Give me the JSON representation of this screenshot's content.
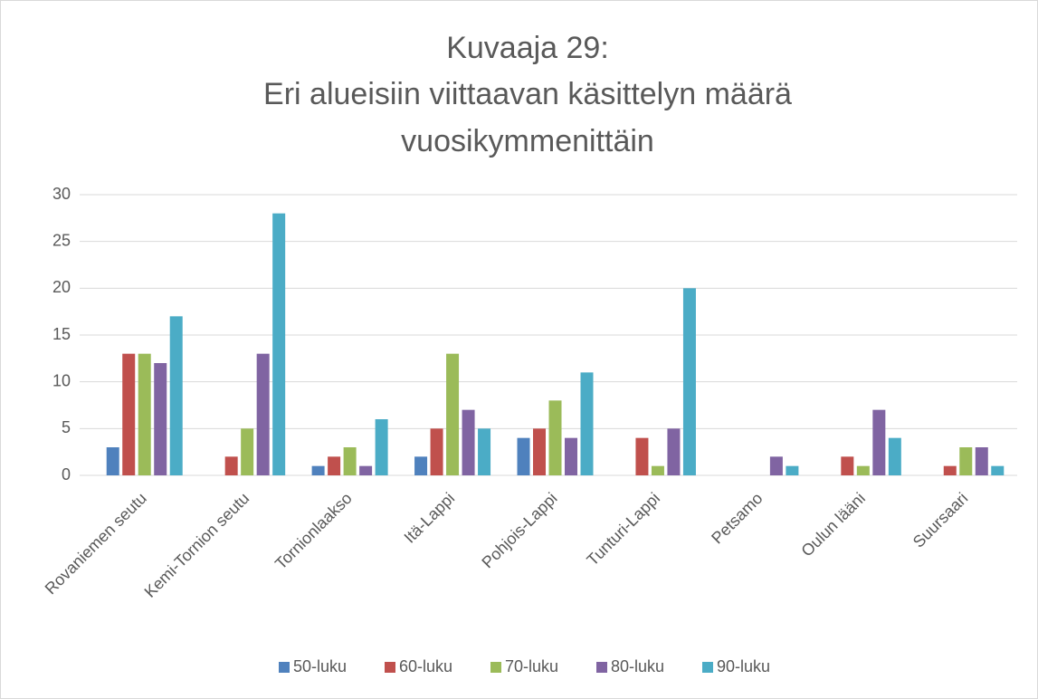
{
  "chart_data": {
    "type": "bar",
    "title": [
      "Kuvaaja 29:",
      "Eri alueisiin viittaavan käsittelyn määrä",
      "vuosikymmenittäin"
    ],
    "categories": [
      "Rovaniemen seutu",
      "Kemi-Tornion seutu",
      "Tornionlaakso",
      "Itä-Lappi",
      "Pohjois-Lappi",
      "Tunturi-Lappi",
      "Petsamo",
      "Oulun lääni",
      "Suursaari"
    ],
    "series": [
      {
        "name": "50-luku",
        "color": "#4f81bd",
        "values": [
          3,
          0,
          1,
          2,
          4,
          0,
          0,
          0,
          0
        ]
      },
      {
        "name": "60-luku",
        "color": "#c0504d",
        "values": [
          13,
          2,
          2,
          5,
          5,
          4,
          0,
          2,
          1
        ]
      },
      {
        "name": "70-luku",
        "color": "#9bbb59",
        "values": [
          13,
          5,
          3,
          13,
          8,
          1,
          0,
          1,
          3
        ]
      },
      {
        "name": "80-luku",
        "color": "#8064a2",
        "values": [
          12,
          13,
          1,
          7,
          4,
          5,
          2,
          7,
          3
        ]
      },
      {
        "name": "90-luku",
        "color": "#4bacc6",
        "values": [
          17,
          28,
          6,
          5,
          11,
          20,
          1,
          4,
          1
        ]
      }
    ],
    "ylim": [
      0,
      30
    ],
    "yticks": [
      0,
      5,
      10,
      15,
      20,
      25,
      30
    ],
    "grid": true,
    "legend": "bottom"
  }
}
